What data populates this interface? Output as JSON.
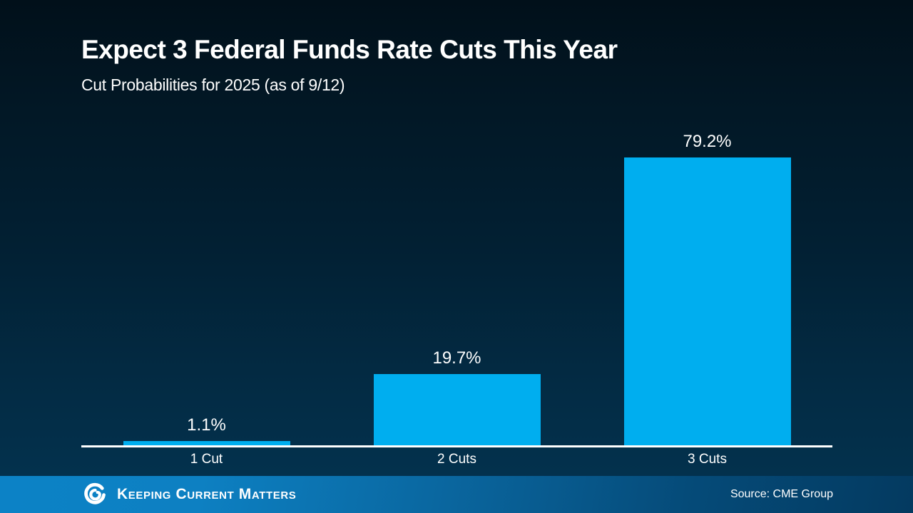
{
  "slide": {
    "title": "Expect 3 Federal Funds Rate Cuts This Year",
    "subtitle": "Cut Probabilities for 2025 (as of 9/12)"
  },
  "chart_data": {
    "type": "bar",
    "categories": [
      "1 Cut",
      "2 Cuts",
      "3 Cuts"
    ],
    "values": [
      1.1,
      19.7,
      79.2
    ],
    "value_labels": [
      "1.1%",
      "19.7%",
      "79.2%"
    ],
    "title": "Expect 3 Federal Funds Rate Cuts This Year",
    "subtitle": "Cut Probabilities for 2025 (as of 9/12)",
    "xlabel": "",
    "ylabel": "",
    "ylim": [
      0,
      100
    ],
    "grid": false,
    "legend": false,
    "bar_color": "#00aeef",
    "axis_line_color": "#ffffff",
    "label_color": "#ffffff"
  },
  "footer": {
    "brand_name": "Keeping Current Matters",
    "source": "Source: CME Group",
    "icon": "kcm-swirl-logo"
  },
  "colors": {
    "background_top": "#01101a",
    "background_bottom": "#043353",
    "bar": "#00aeef",
    "footer_left": "#0c82c6",
    "footer_right": "#043a60",
    "text": "#ffffff"
  }
}
